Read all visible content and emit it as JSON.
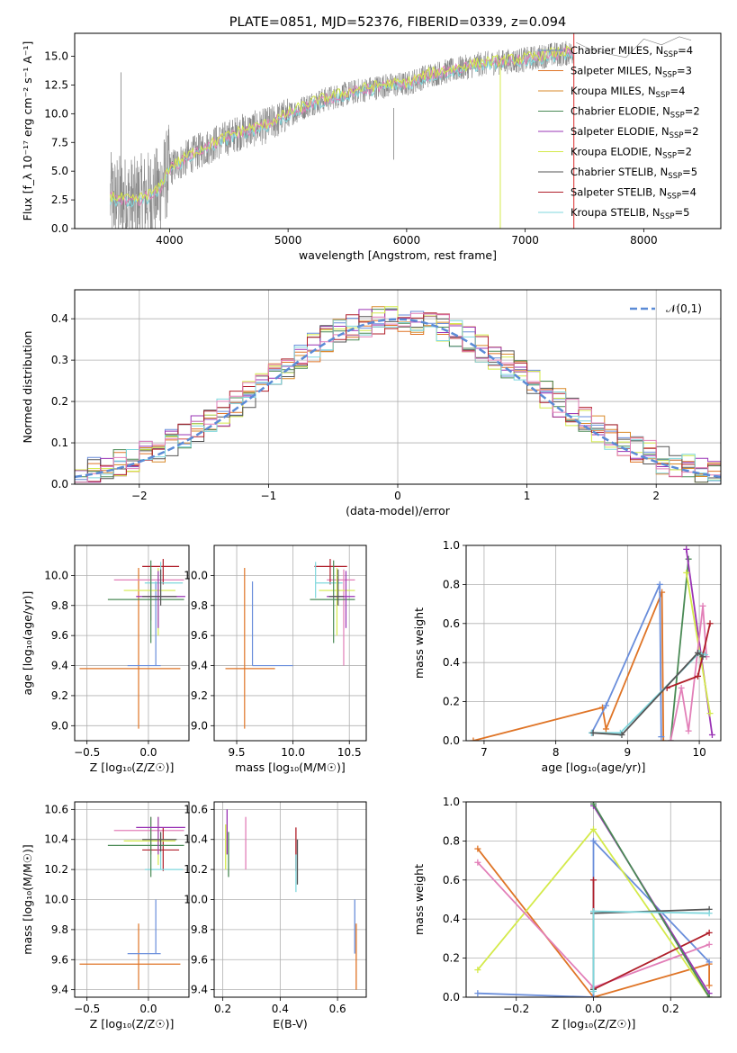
{
  "colors": {
    "Chabrier MILES": "#6a8edb",
    "Salpeter MILES": "#df7426",
    "Kroupa MILES": "#d98a2a",
    "Chabrier ELODIE": "#4a8a55",
    "Salpeter ELODIE": "#9a34b5",
    "Kroupa ELODIE": "#d4ea4b",
    "Chabrier STELIB": "#555555",
    "Salpeter STELIB": "#b01f2a",
    "Kroupa STELIB": "#7fd7dd",
    "pink": "#e27fb8",
    "spectrum": "#808080",
    "normal": "#5b8bd6"
  },
  "chart_data": [
    {
      "id": "spectrum",
      "type": "line",
      "title": "PLATE=0851, MJD=52376, FIBERID=0339, z=0.094",
      "xlabel": "wavelength [Angstrom, rest frame]",
      "ylabel": "Flux [f_λ 10⁻¹⁷ erg cm⁻² s⁻¹ A⁻¹]",
      "xlim": [
        3200,
        8650
      ],
      "ylim": [
        0,
        17
      ],
      "xticks": [
        4000,
        5000,
        6000,
        7000,
        8000
      ],
      "yticks": [
        0.0,
        2.5,
        5.0,
        7.5,
        10.0,
        12.5,
        15.0
      ],
      "grid": false,
      "legend_position": "right",
      "series": [
        {
          "name": "Chabrier MILES, N_SSP=4"
        },
        {
          "name": "Salpeter MILES, N_SSP=3"
        },
        {
          "name": "Kroupa MILES, N_SSP=4"
        },
        {
          "name": "Chabrier ELODIE, N_SSP=2"
        },
        {
          "name": "Salpeter ELODIE, N_SSP=2"
        },
        {
          "name": "Kroupa ELODIE, N_SSP=2"
        },
        {
          "name": "Chabrier STELIB, N_SSP=5"
        },
        {
          "name": "Salpeter STELIB, N_SSP=4"
        },
        {
          "name": "Kroupa STELIB, N_SSP=5"
        }
      ],
      "continuum": {
        "x": [
          3500,
          3700,
          3900,
          4000,
          4200,
          4400,
          4600,
          4800,
          5000,
          5200,
          5400,
          5600,
          5800,
          6000,
          6200,
          6400,
          6600,
          6800,
          7000,
          7200,
          7400
        ],
        "y": [
          2.7,
          2.3,
          3.2,
          5.2,
          6.5,
          7.5,
          8.4,
          8.9,
          9.9,
          10.9,
          11.5,
          12.0,
          12.4,
          12.6,
          13.4,
          13.8,
          14.3,
          14.5,
          14.7,
          15.1,
          15.3
        ]
      },
      "tail_points": {
        "x": [
          7430,
          7550,
          7700,
          7850,
          8000,
          8150,
          8300,
          8400
        ],
        "y": [
          16.2,
          15.6,
          15.2,
          14.9,
          16.5,
          16.0,
          16.7,
          16.4
        ]
      }
    },
    {
      "id": "residuals",
      "type": "line",
      "xlabel": "(data-model)/error",
      "ylabel": "Normed distribution",
      "xlim": [
        -2.5,
        2.5
      ],
      "ylim": [
        0,
        0.47
      ],
      "xticks": [
        -2,
        -1,
        0,
        1,
        2
      ],
      "yticks": [
        0.0,
        0.1,
        0.2,
        0.3,
        0.4
      ],
      "grid": true,
      "legend_position": "top-right",
      "normal_label": "𝒩(0,1)",
      "hist_bins": {
        "start": -2.5,
        "width": 0.1,
        "count": 50
      }
    },
    {
      "id": "age-vs-Z",
      "type": "scatter",
      "xlabel": "Z [log₁₀(Z/Z☉)]",
      "ylabel": "age  [log₁₀(age/yr)]",
      "xlim": [
        -0.6,
        0.33
      ],
      "ylim": [
        8.9,
        10.2
      ],
      "xticks": [
        -0.5,
        0.0,
        0.5
      ],
      "yticks": [
        9.0,
        9.2,
        9.4,
        9.6,
        9.8,
        10.0
      ],
      "grid": true,
      "points": [
        {
          "c": "Salpeter MILES",
          "x": -0.08,
          "y": 9.38,
          "xe": [
            -0.56,
            0.26
          ],
          "ye": [
            8.98,
            10.05
          ]
        },
        {
          "c": "Chabrier MILES",
          "x": 0.06,
          "y": 9.4,
          "xe": [
            -0.17,
            0.1
          ],
          "ye": [
            9.4,
            9.96
          ]
        },
        {
          "c": "pink",
          "x": 0.02,
          "y": 9.97,
          "xe": [
            -0.28,
            0.29
          ],
          "ye": [
            9.7,
            10.04
          ]
        },
        {
          "c": "Salpeter STELIB",
          "x": 0.12,
          "y": 10.06,
          "xe": [
            -0.05,
            0.25
          ],
          "ye": [
            9.94,
            10.11
          ]
        },
        {
          "c": "Kroupa STELIB",
          "x": 0.1,
          "y": 9.95,
          "xe": [
            -0.03,
            0.28
          ],
          "ye": [
            9.85,
            10.09
          ]
        },
        {
          "c": "Kroupa ELODIE",
          "x": 0.08,
          "y": 9.9,
          "xe": [
            -0.2,
            0.22
          ],
          "ye": [
            9.6,
            10.05
          ]
        },
        {
          "c": "Chabrier ELODIE",
          "x": 0.02,
          "y": 9.84,
          "xe": [
            -0.33,
            0.29
          ],
          "ye": [
            9.55,
            10.1
          ]
        },
        {
          "c": "Salpeter ELODIE",
          "x": 0.08,
          "y": 9.86,
          "xe": [
            -0.1,
            0.3
          ],
          "ye": [
            9.65,
            10.03
          ]
        },
        {
          "c": "Chabrier STELIB",
          "x": 0.1,
          "y": 9.86,
          "xe": [
            -0.05,
            0.23
          ],
          "ye": [
            9.8,
            10.04
          ]
        }
      ]
    },
    {
      "id": "age-vs-mass",
      "type": "scatter",
      "xlabel": "mass [log₁₀(M/M☉)]",
      "xlim": [
        9.3,
        10.65
      ],
      "ylim": [
        8.9,
        10.2
      ],
      "xticks": [
        9.5,
        10.0,
        10.5
      ],
      "yticks": [
        9.0,
        9.2,
        9.4,
        9.6,
        9.8,
        10.0
      ],
      "grid": true,
      "points": [
        {
          "c": "Salpeter MILES",
          "x": 9.57,
          "y": 9.38,
          "xe": [
            9.4,
            9.84
          ],
          "ye": [
            8.98,
            10.05
          ]
        },
        {
          "c": "Chabrier MILES",
          "x": 9.64,
          "y": 9.4,
          "xe": [
            9.64,
            10.0
          ],
          "ye": [
            9.4,
            9.96
          ]
        },
        {
          "c": "pink",
          "x": 10.45,
          "y": 9.97,
          "xe": [
            10.3,
            10.55
          ],
          "ye": [
            9.4,
            10.04
          ]
        },
        {
          "c": "Salpeter STELIB",
          "x": 10.33,
          "y": 10.06,
          "xe": [
            10.19,
            10.48
          ],
          "ye": [
            9.94,
            10.11
          ]
        },
        {
          "c": "Kroupa STELIB",
          "x": 10.2,
          "y": 9.95,
          "xe": [
            10.2,
            10.44
          ],
          "ye": [
            9.85,
            10.09
          ]
        },
        {
          "c": "Kroupa ELODIE",
          "x": 10.39,
          "y": 9.9,
          "xe": [
            10.23,
            10.55
          ],
          "ye": [
            9.6,
            10.05
          ]
        },
        {
          "c": "Chabrier ELODIE",
          "x": 10.36,
          "y": 9.84,
          "xe": [
            10.15,
            10.55
          ],
          "ye": [
            9.55,
            10.1
          ]
        },
        {
          "c": "Salpeter ELODIE",
          "x": 10.47,
          "y": 9.86,
          "xe": [
            10.3,
            10.55
          ],
          "ye": [
            9.65,
            10.03
          ]
        },
        {
          "c": "Chabrier STELIB",
          "x": 10.4,
          "y": 9.86,
          "xe": [
            10.32,
            10.45
          ],
          "ye": [
            9.8,
            10.04
          ]
        }
      ]
    },
    {
      "id": "weight-vs-age",
      "type": "line",
      "xlabel": "age  [log₁₀(age/yr)]",
      "ylabel": "mass weight",
      "xlim": [
        6.75,
        10.3
      ],
      "ylim": [
        0,
        1
      ],
      "xticks": [
        7,
        8,
        9,
        10
      ],
      "yticks": [
        0.0,
        0.2,
        0.4,
        0.6,
        0.8,
        1.0
      ],
      "grid": true,
      "series": [
        {
          "c": "Salpeter MILES",
          "x": [
            6.85,
            8.65,
            8.7,
            9.48,
            9.5
          ],
          "y": [
            0.0,
            0.17,
            0.06,
            0.76,
            0.0
          ]
        },
        {
          "c": "Chabrier MILES",
          "x": [
            8.5,
            8.7,
            9.45,
            9.47
          ],
          "y": [
            0.04,
            0.18,
            0.8,
            0.02
          ]
        },
        {
          "c": "Chabrier ELODIE",
          "x": [
            9.6,
            9.85
          ],
          "y": [
            0.0,
            0.93
          ]
        },
        {
          "c": "Salpeter ELODIE",
          "x": [
            9.82,
            10.18
          ],
          "y": [
            0.98,
            0.03
          ]
        },
        {
          "c": "Kroupa ELODIE",
          "x": [
            9.82,
            10.15
          ],
          "y": [
            0.86,
            0.14
          ]
        },
        {
          "c": "pink",
          "x": [
            9.6,
            9.75,
            9.85,
            10.05,
            10.1
          ],
          "y": [
            0.0,
            0.27,
            0.05,
            0.69,
            0.43
          ]
        },
        {
          "c": "Salpeter STELIB",
          "x": [
            9.55,
            9.98,
            10.05,
            10.15
          ],
          "y": [
            0.27,
            0.33,
            0.44,
            0.6
          ]
        },
        {
          "c": "Kroupa STELIB",
          "x": [
            8.5,
            8.9,
            10.0,
            10.08
          ],
          "y": [
            0.04,
            0.04,
            0.45,
            0.44
          ]
        },
        {
          "c": "Chabrier STELIB",
          "x": [
            8.52,
            8.92,
            9.98,
            10.05
          ],
          "y": [
            0.04,
            0.03,
            0.45,
            0.43
          ]
        }
      ]
    },
    {
      "id": "mass-vs-Z",
      "type": "scatter",
      "xlabel": "Z [log₁₀(Z/Z☉)]",
      "ylabel": "mass [log₁₀(M/M☉)]",
      "xlim": [
        -0.6,
        0.33
      ],
      "ylim": [
        9.35,
        10.65
      ],
      "xticks": [
        -0.5,
        0.0,
        0.5
      ],
      "yticks": [
        9.4,
        9.6,
        9.8,
        10.0,
        10.2,
        10.4,
        10.6
      ],
      "grid": true,
      "points": [
        {
          "c": "Salpeter MILES",
          "x": -0.08,
          "y": 9.57,
          "xe": [
            -0.56,
            0.26
          ],
          "ye": [
            9.4,
            9.84
          ]
        },
        {
          "c": "Chabrier MILES",
          "x": 0.06,
          "y": 9.64,
          "xe": [
            -0.17,
            0.1
          ],
          "ye": [
            9.64,
            10.0
          ]
        },
        {
          "c": "pink",
          "x": 0.02,
          "y": 10.46,
          "xe": [
            -0.28,
            0.29
          ],
          "ye": [
            10.3,
            10.55
          ]
        },
        {
          "c": "Salpeter STELIB",
          "x": 0.12,
          "y": 10.33,
          "xe": [
            -0.05,
            0.25
          ],
          "ye": [
            10.19,
            10.48
          ]
        },
        {
          "c": "Kroupa STELIB",
          "x": 0.1,
          "y": 10.2,
          "xe": [
            -0.03,
            0.28
          ],
          "ye": [
            10.2,
            10.44
          ]
        },
        {
          "c": "Kroupa ELODIE",
          "x": 0.08,
          "y": 10.39,
          "xe": [
            -0.2,
            0.22
          ],
          "ye": [
            10.23,
            10.55
          ]
        },
        {
          "c": "Chabrier ELODIE",
          "x": 0.02,
          "y": 10.36,
          "xe": [
            -0.33,
            0.29
          ],
          "ye": [
            10.15,
            10.55
          ]
        },
        {
          "c": "Salpeter ELODIE",
          "x": 0.08,
          "y": 10.48,
          "xe": [
            -0.1,
            0.3
          ],
          "ye": [
            10.3,
            10.55
          ]
        },
        {
          "c": "Chabrier STELIB",
          "x": 0.1,
          "y": 10.4,
          "xe": [
            -0.05,
            0.23
          ],
          "ye": [
            10.32,
            10.45
          ]
        }
      ]
    },
    {
      "id": "mass-vs-EBV",
      "type": "scatter",
      "xlabel": "E(B-V)",
      "xlim": [
        0.17,
        0.7
      ],
      "ylim": [
        9.35,
        10.65
      ],
      "xticks": [
        0.2,
        0.4,
        0.6
      ],
      "yticks": [
        9.4,
        9.6,
        9.8,
        10.0,
        10.2,
        10.4,
        10.6
      ],
      "grid": true,
      "points": [
        {
          "c": "Kroupa ELODIE",
          "x": 0.21,
          "ye": [
            10.2,
            10.5
          ]
        },
        {
          "c": "Chabrier ELODIE",
          "x": 0.22,
          "ye": [
            10.15,
            10.45
          ]
        },
        {
          "c": "Salpeter ELODIE",
          "x": 0.215,
          "ye": [
            10.3,
            10.6
          ]
        },
        {
          "c": "pink",
          "x": 0.28,
          "ye": [
            10.2,
            10.55
          ]
        },
        {
          "c": "Salpeter STELIB",
          "x": 0.455,
          "ye": [
            10.19,
            10.48
          ]
        },
        {
          "c": "Kroupa STELIB",
          "x": 0.455,
          "ye": [
            10.05,
            10.3
          ]
        },
        {
          "c": "Chabrier STELIB",
          "x": 0.46,
          "ye": [
            10.1,
            10.4
          ]
        },
        {
          "c": "Chabrier MILES",
          "x": 0.66,
          "ye": [
            9.64,
            10.0
          ]
        },
        {
          "c": "Salpeter MILES",
          "x": 0.665,
          "ye": [
            9.4,
            9.84
          ]
        }
      ]
    },
    {
      "id": "weight-vs-Z",
      "type": "line",
      "xlabel": "Z [log₁₀(Z/Z☉)]",
      "ylabel": "mass weight",
      "xlim": [
        -0.33,
        0.33
      ],
      "ylim": [
        0,
        1
      ],
      "xticks": [
        -0.2,
        0.0,
        0.2
      ],
      "yticks": [
        0.0,
        0.2,
        0.4,
        0.6,
        0.8,
        1.0
      ],
      "grid": true,
      "series": [
        {
          "c": "Salpeter MILES",
          "x": [
            -0.3,
            0.0,
            0.3,
            0.3
          ],
          "y": [
            0.76,
            0.0,
            0.17,
            0.06
          ]
        },
        {
          "c": "Chabrier MILES",
          "x": [
            -0.3,
            0.0,
            0.0,
            0.3
          ],
          "y": [
            0.02,
            0.0,
            0.8,
            0.18
          ]
        },
        {
          "c": "Kroupa ELODIE",
          "x": [
            -0.3,
            0.0,
            0.3
          ],
          "y": [
            0.14,
            0.86,
            0.0
          ]
        },
        {
          "c": "pink",
          "x": [
            -0.3,
            0.0,
            0.3
          ],
          "y": [
            0.69,
            0.05,
            0.27
          ]
        },
        {
          "c": "Salpeter STELIB",
          "x": [
            0.0,
            0.0,
            0.3
          ],
          "y": [
            0.6,
            0.04,
            0.33
          ]
        },
        {
          "c": "Salpeter ELODIE",
          "x": [
            0.0,
            0.3
          ],
          "y": [
            0.98,
            0.02
          ]
        },
        {
          "c": "Chabrier ELODIE",
          "x": [
            0.0,
            0.3
          ],
          "y": [
            0.99,
            0.0
          ]
        },
        {
          "c": "Chabrier STELIB",
          "x": [
            0.0,
            0.0,
            0.3
          ],
          "y": [
            0.04,
            0.43,
            0.45
          ]
        },
        {
          "c": "Kroupa STELIB",
          "x": [
            0.0,
            0.0,
            0.3
          ],
          "y": [
            0.03,
            0.44,
            0.43
          ]
        }
      ]
    }
  ]
}
